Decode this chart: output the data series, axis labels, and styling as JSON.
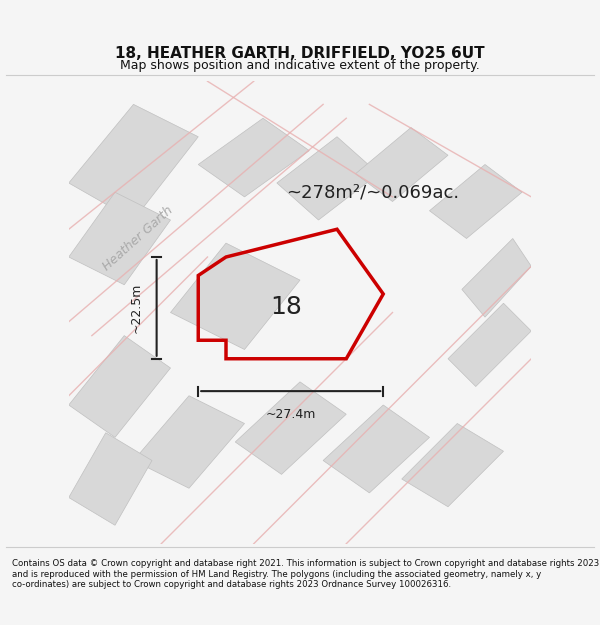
{
  "title": "18, HEATHER GARTH, DRIFFIELD, YO25 6UT",
  "subtitle": "Map shows position and indicative extent of the property.",
  "footer": "Contains OS data © Crown copyright and database right 2021. This information is subject to Crown copyright and database rights 2023 and is reproduced with the permission of HM Land Registry. The polygons (including the associated geometry, namely x, y co-ordinates) are subject to Crown copyright and database rights 2023 Ordnance Survey 100026316.",
  "area_label": "~278m²/~0.069ac.",
  "number_label": "18",
  "dim_width": "~27.4m",
  "dim_height": "~22.5m",
  "road_label": "Heather Garth",
  "bg_color": "#f5f5f5",
  "map_bg": "#f0f0f0",
  "building_color": "#d8d8d8",
  "building_edge": "#c0c0c0",
  "road_line_color": "#e8b0b0",
  "highlight_color": "#cc0000",
  "dim_color": "#222222",
  "title_color": "#111111",
  "footer_color": "#111111"
}
